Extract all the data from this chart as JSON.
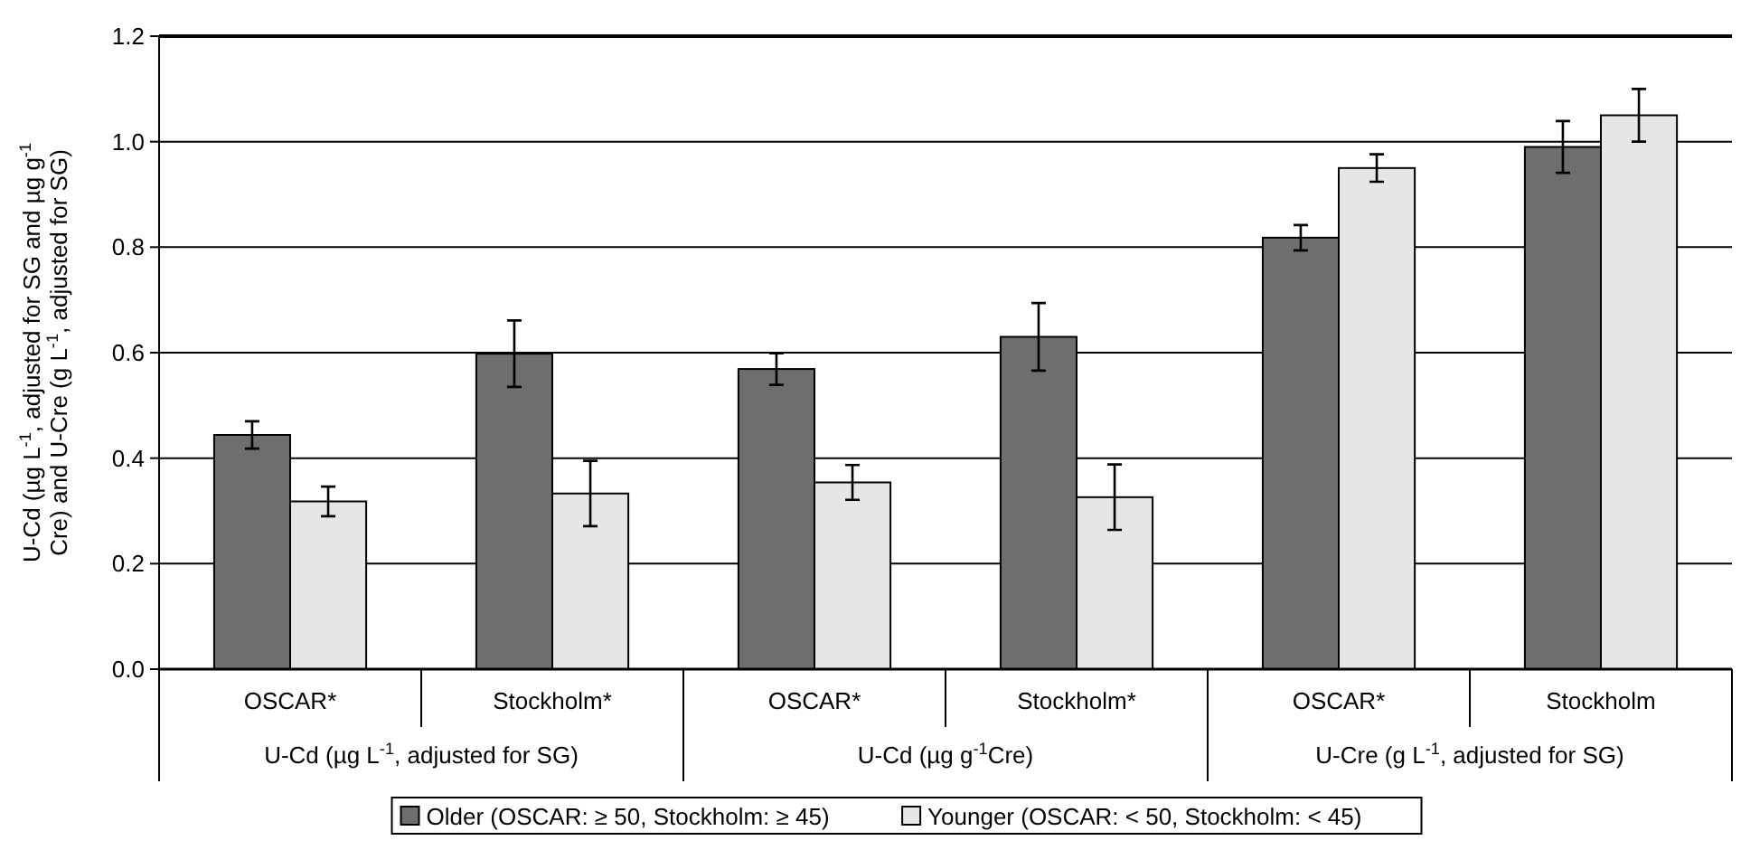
{
  "chart_data": {
    "type": "bar",
    "ylabel": "U-Cd (µg L$^{-1}$, adjusted for SG and µg g$^{-1}$ Cre) and U-Cre (g L$^{-1}$, adjusted for SG)",
    "categories": [
      "OSCAR*",
      "Stockholm*",
      "OSCAR*",
      "Stockholm*",
      "OSCAR*",
      "Stockholm"
    ],
    "series": [
      {
        "name": "Older (OSCAR: ≥  50, Stockholm: ≥ 45)",
        "color": "#6e6e6e",
        "values": [
          0.444,
          0.598,
          0.569,
          0.63,
          0.818,
          0.99
        ],
        "errors": [
          0.026,
          0.063,
          0.03,
          0.064,
          0.024,
          0.049
        ]
      },
      {
        "name": "Younger (OSCAR: < 50, Stockholm: < 45)",
        "color": "#e6e6e6",
        "values": [
          0.318,
          0.333,
          0.354,
          0.326,
          0.95,
          1.05
        ],
        "errors": [
          0.028,
          0.062,
          0.033,
          0.062,
          0.026,
          0.05
        ]
      }
    ],
    "annotations": [
      "U-Cd (µg L$^{-1}$, adjusted for SG)",
      "U-Cd (µg g$^{-1}$Cre)",
      "U-Cre (g L$^{-1}$, adjusted for SG)"
    ],
    "ylim": [
      0,
      1.2
    ],
    "yticks": [
      {
        "value": 0,
        "label": "0.0"
      },
      {
        "value": 0.2,
        "label": "0.2"
      },
      {
        "value": 0.4,
        "label": "0.4"
      },
      {
        "value": 0.6,
        "label": "0.6"
      },
      {
        "value": 0.8,
        "label": "0.8"
      },
      {
        "value": 1,
        "label": "1.0"
      },
      {
        "value": 1.2,
        "label": "1.2"
      }
    ],
    "grid": "y",
    "legend": "bottom"
  }
}
